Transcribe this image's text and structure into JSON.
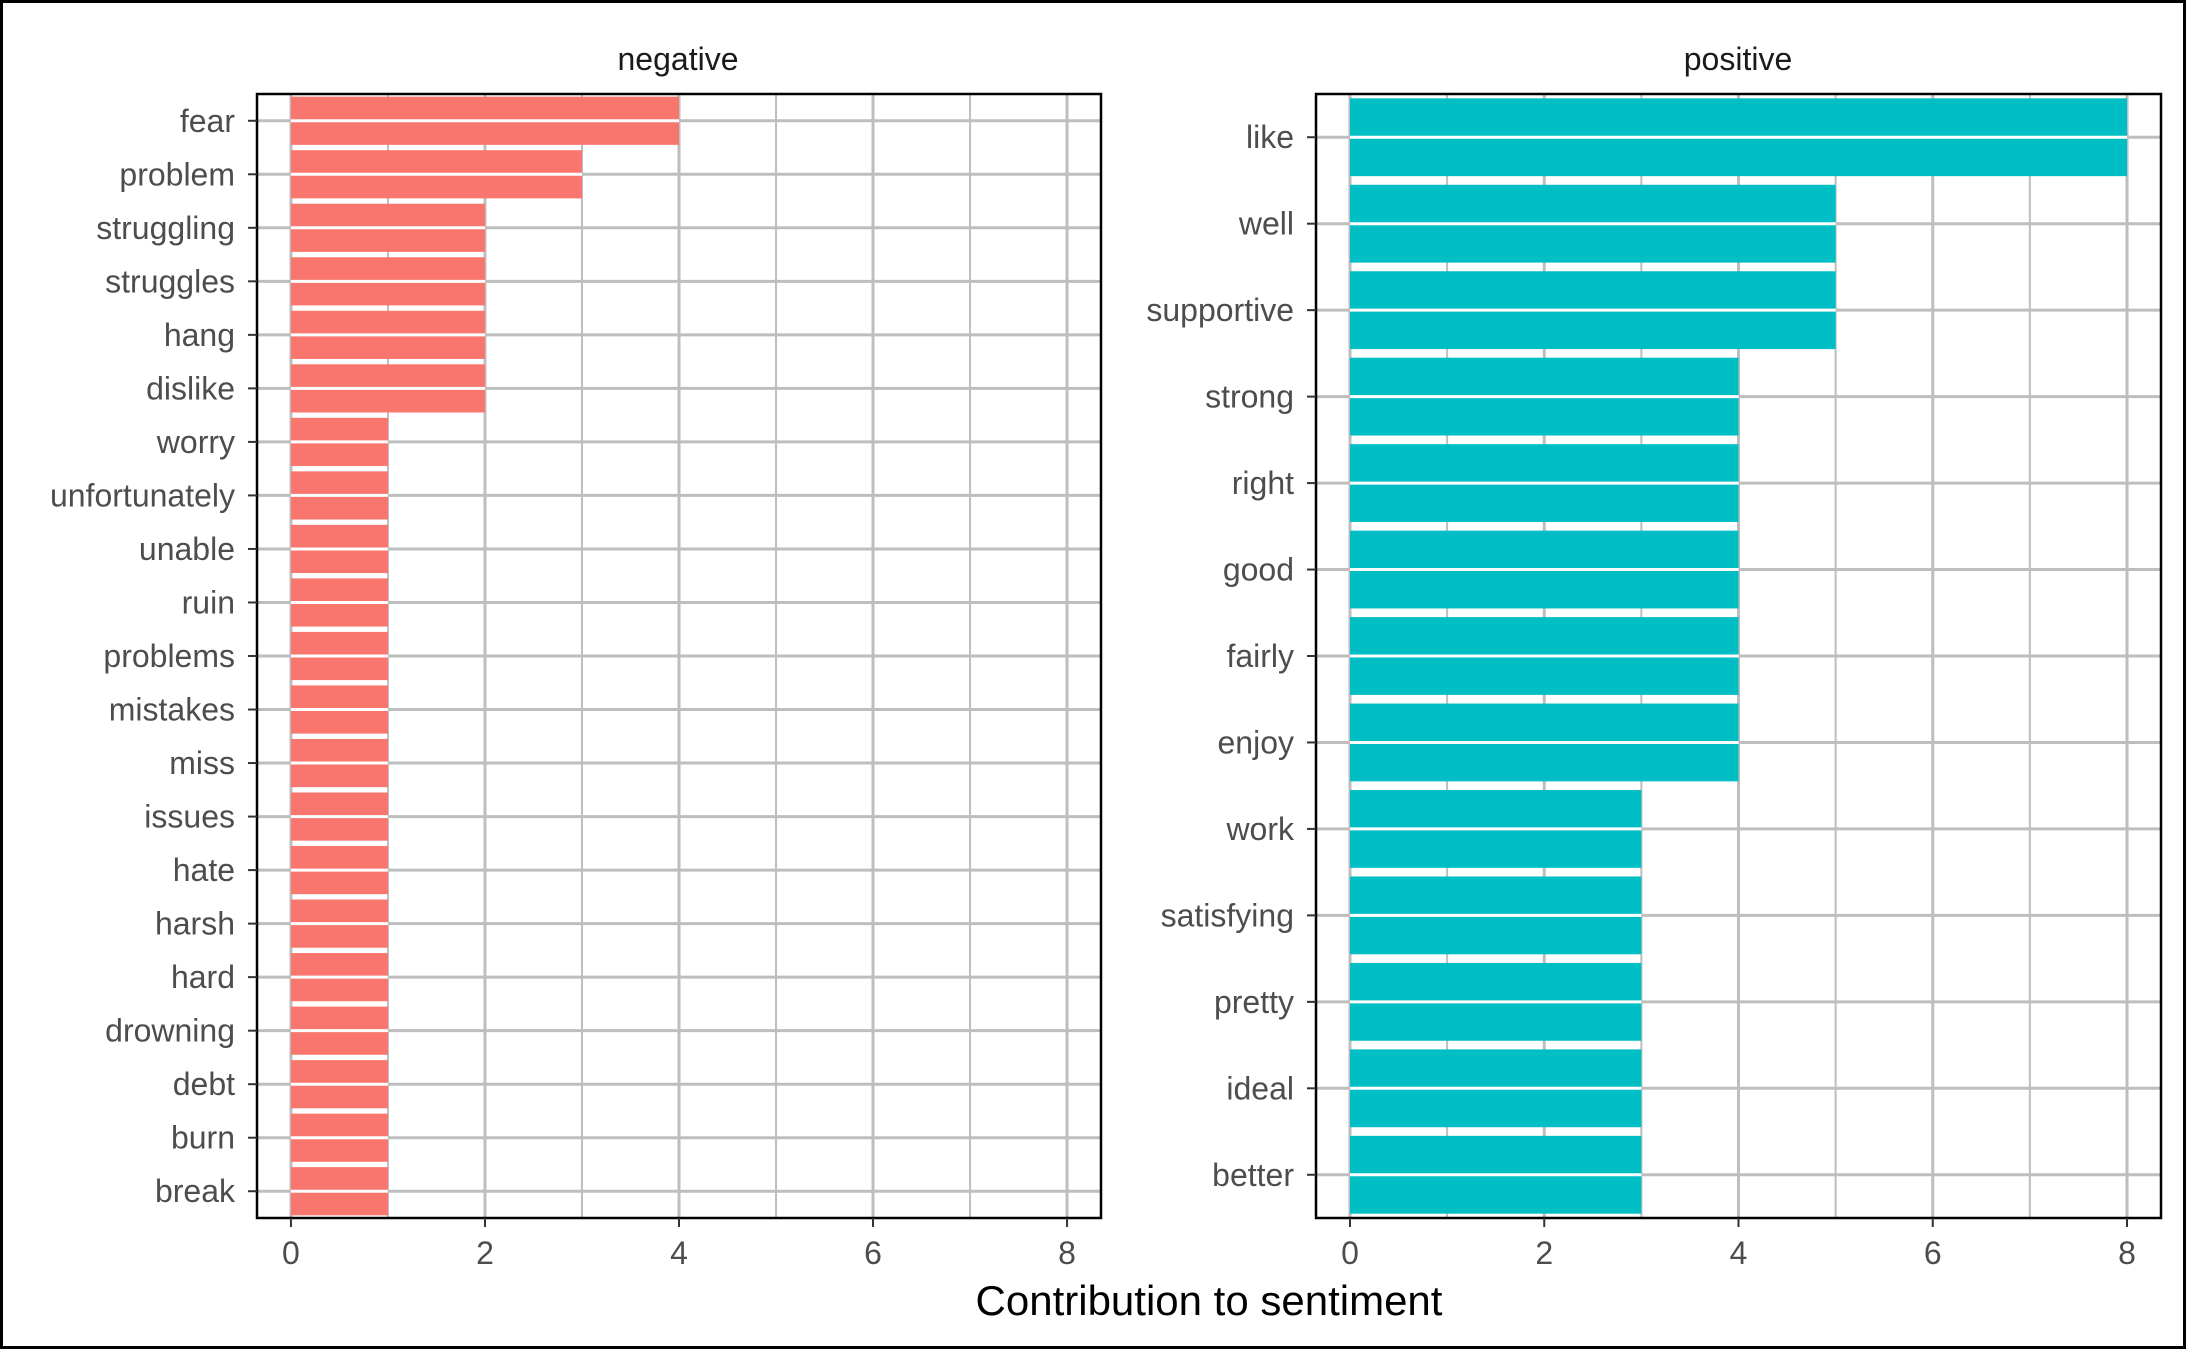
{
  "chart_data": [
    {
      "type": "bar",
      "orientation": "horizontal",
      "panel_title": "negative",
      "categories": [
        "fear",
        "problem",
        "struggling",
        "struggles",
        "hang",
        "dislike",
        "worry",
        "unfortunately",
        "unable",
        "ruin",
        "problems",
        "mistakes",
        "miss",
        "issues",
        "hate",
        "harsh",
        "hard",
        "drowning",
        "debt",
        "burn",
        "break"
      ],
      "values": [
        4,
        3,
        2,
        2,
        2,
        2,
        1,
        1,
        1,
        1,
        1,
        1,
        1,
        1,
        1,
        1,
        1,
        1,
        1,
        1,
        1
      ],
      "xlim": [
        -0.35,
        8.35
      ],
      "x_ticks": [
        0,
        2,
        4,
        6,
        8
      ],
      "color": "#F8766D",
      "grid": true
    },
    {
      "type": "bar",
      "orientation": "horizontal",
      "panel_title": "positive",
      "categories": [
        "like",
        "well",
        "supportive",
        "strong",
        "right",
        "good",
        "fairly",
        "enjoy",
        "work",
        "satisfying",
        "pretty",
        "ideal",
        "better"
      ],
      "values": [
        8,
        5,
        5,
        4,
        4,
        4,
        4,
        4,
        3,
        3,
        3,
        3,
        3
      ],
      "xlim": [
        -0.35,
        8.35
      ],
      "x_ticks": [
        0,
        2,
        4,
        6,
        8
      ],
      "color": "#00BFC4",
      "grid": true
    }
  ],
  "xlabel": "Contribution to sentiment"
}
